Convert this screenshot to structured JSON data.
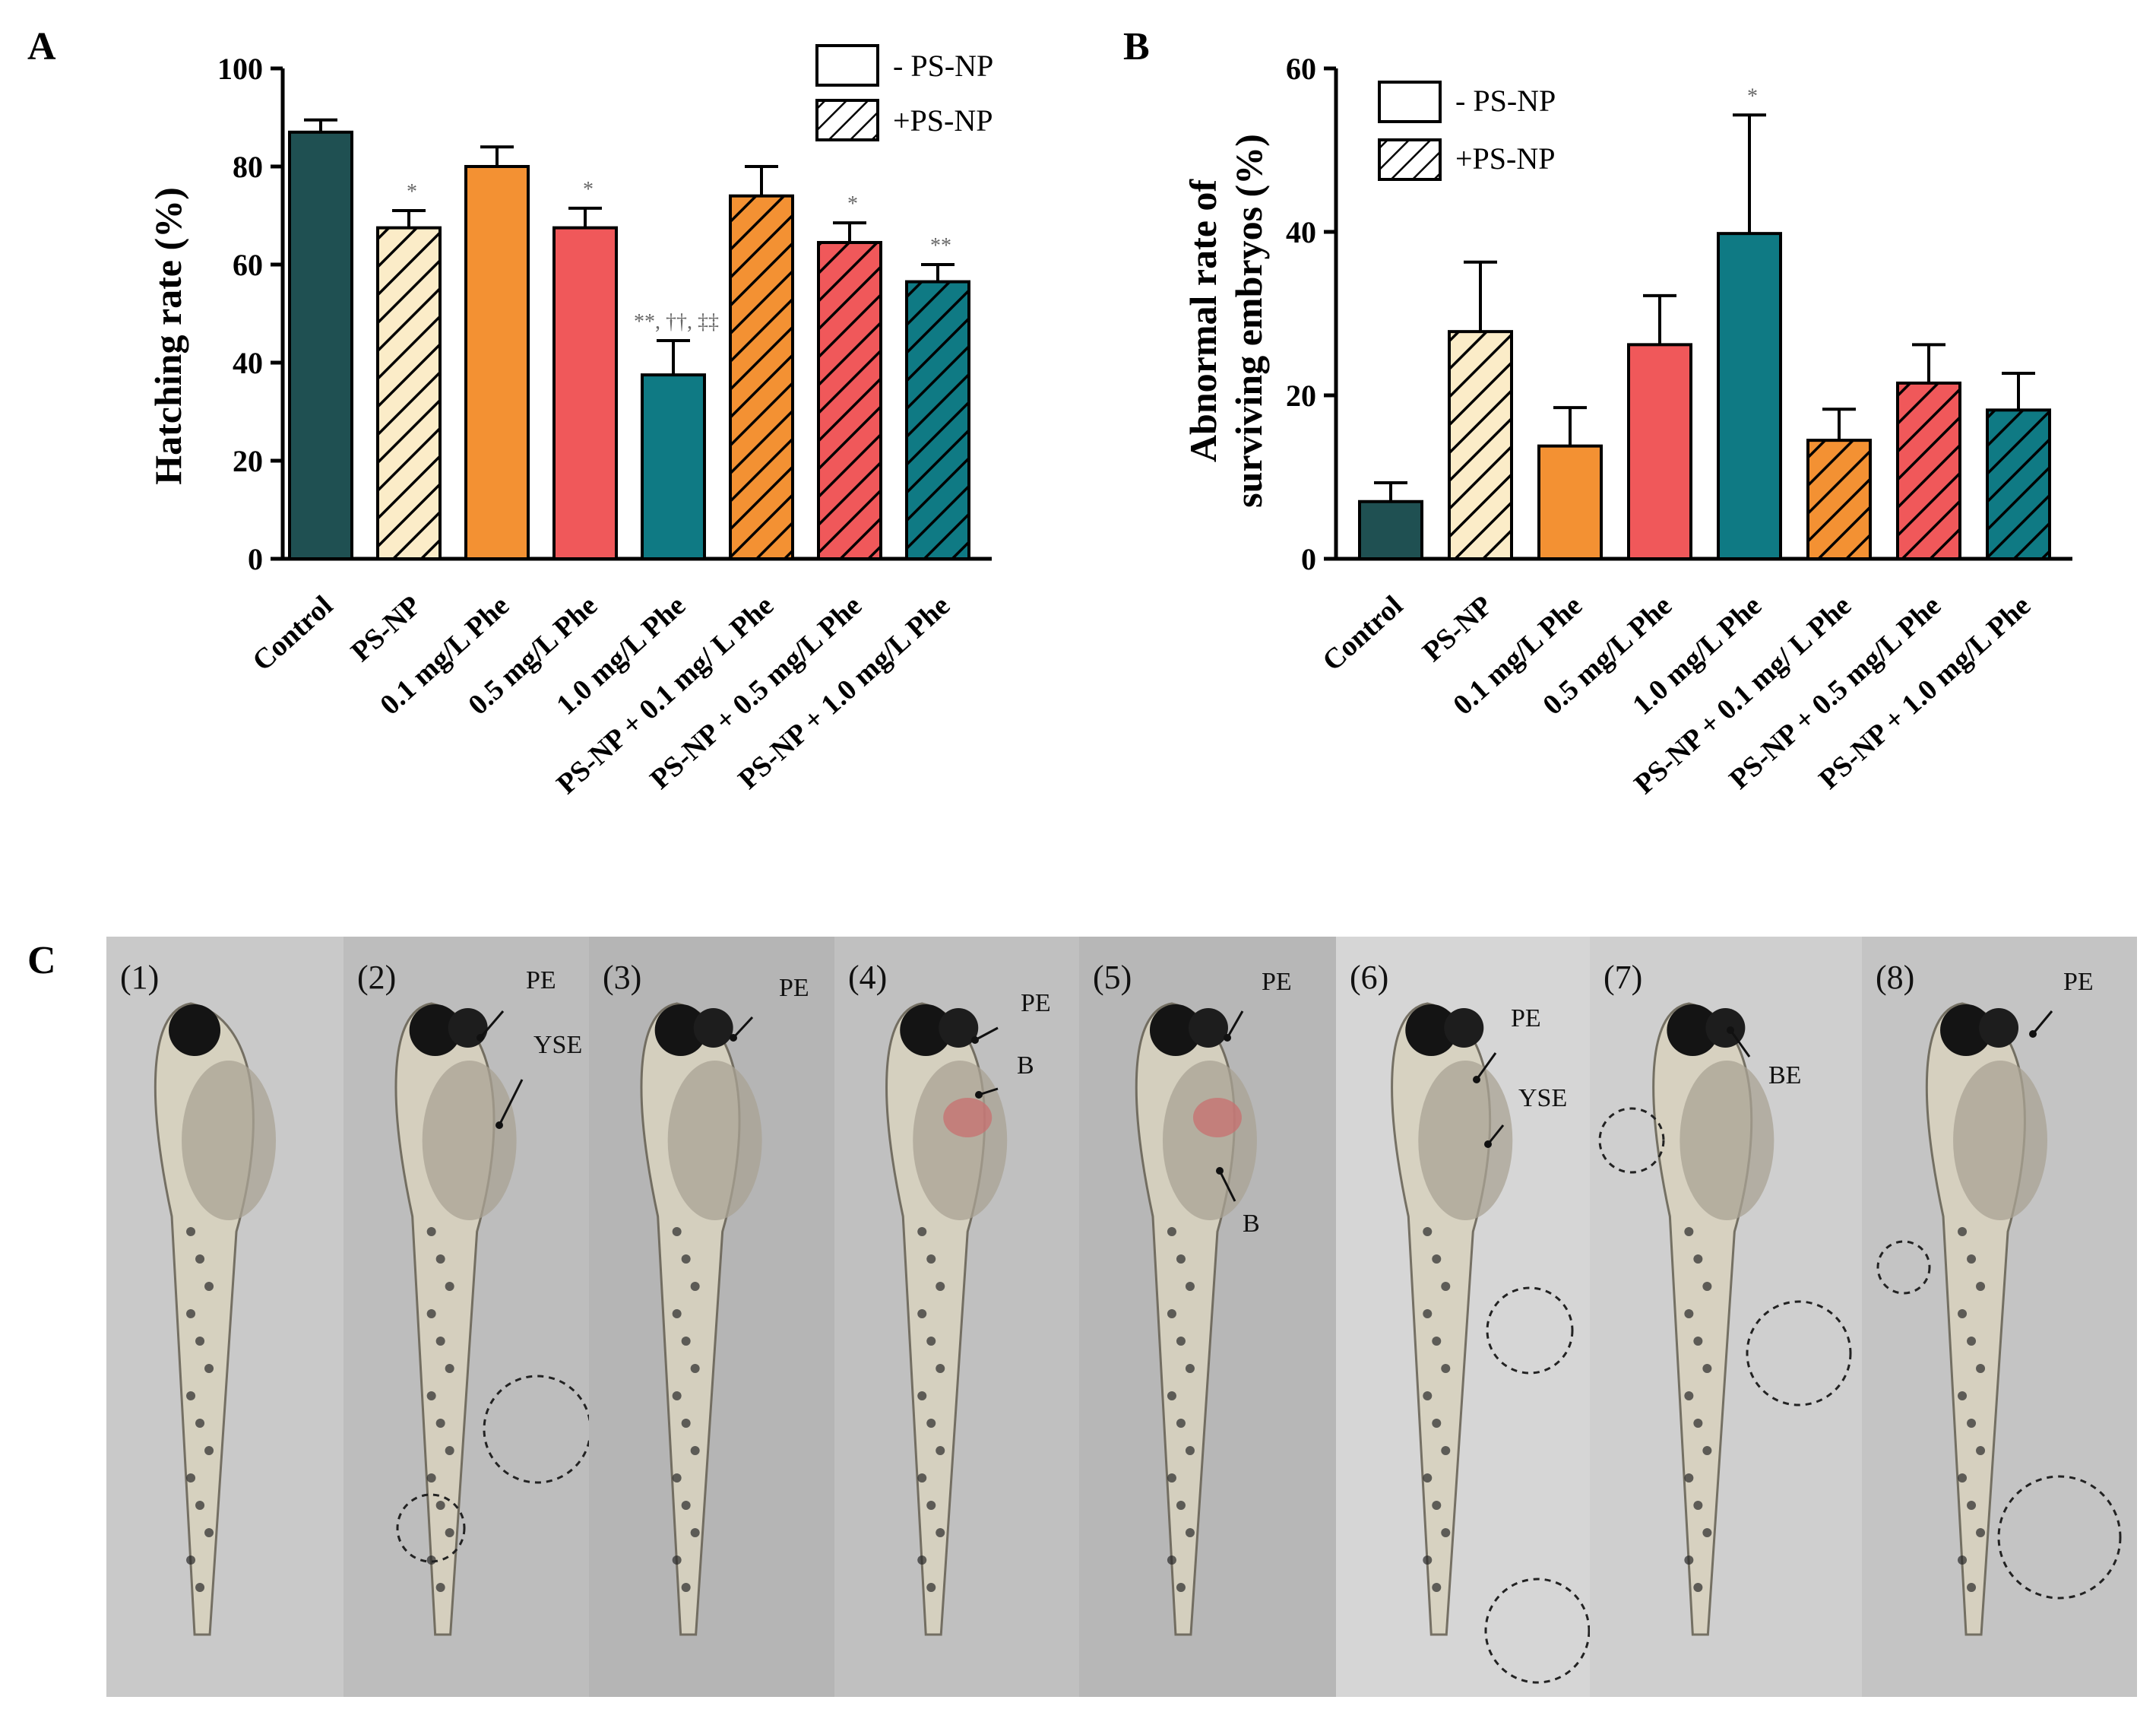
{
  "panel_labels": {
    "a": "A",
    "b": "B",
    "c": "C"
  },
  "legend": {
    "minus": "- PS-NP",
    "plus": "+PS-NP"
  },
  "colors": {
    "control": "#1f5052",
    "psnp": "#fbecc8",
    "phe01": "#f39133",
    "phe05": "#f0585a",
    "phe10": "#0f7a84"
  },
  "chart_data": [
    {
      "type": "bar",
      "panel": "A",
      "ylabel": "Hatching rate (%)",
      "xlabel": "",
      "ylim": [
        0,
        100
      ],
      "yticks": [
        "0",
        "20",
        "40",
        "60",
        "80",
        "100"
      ],
      "categories": [
        "Control",
        "PS-NP",
        "0.1 mg/L Phe",
        "0.5 mg/L Phe",
        "1.0 mg/L Phe",
        "PS-NP + 0.1 mg/ L Phe",
        "PS-NP + 0.5 mg/L  Phe",
        "PS-NP + 1.0 mg/L Phe"
      ],
      "values": [
        87,
        67.5,
        80,
        67.5,
        37.5,
        74,
        64.5,
        56.5
      ],
      "errors": [
        2.5,
        3.5,
        4,
        4,
        7,
        6,
        4,
        3.5
      ],
      "hatched": [
        false,
        true,
        false,
        false,
        false,
        true,
        true,
        true
      ],
      "fills": [
        "control",
        "psnp",
        "phe01",
        "phe05",
        "phe10",
        "phe01",
        "phe05",
        "phe10"
      ],
      "significance": [
        "",
        "*",
        "",
        "*",
        "**, ††, ‡‡",
        "",
        "*",
        "**"
      ]
    },
    {
      "type": "bar",
      "panel": "B",
      "ylabel_lines": [
        "Abnormal rate of",
        "surviving embryos (%)"
      ],
      "xlabel": "",
      "ylim": [
        0,
        60
      ],
      "yticks": [
        "0",
        "20",
        "40",
        "60"
      ],
      "categories": [
        "Control",
        "PS-NP",
        "0.1 mg/L Phe",
        "0.5 mg/L Phe",
        "1.0 mg/L Phe",
        "PS-NP + 0.1 mg/ L Phe",
        "PS-NP + 0.5 mg/L  Phe",
        "PS-NP + 1.0 mg/L Phe"
      ],
      "values": [
        7,
        27.8,
        13.8,
        26.2,
        39.8,
        14.5,
        21.5,
        18.2
      ],
      "errors": [
        2.3,
        8.5,
        4.7,
        6,
        14.5,
        3.8,
        4.7,
        4.5
      ],
      "hatched": [
        false,
        true,
        false,
        false,
        false,
        true,
        true,
        true
      ],
      "fills": [
        "control",
        "psnp",
        "phe01",
        "phe05",
        "phe10",
        "phe01",
        "phe05",
        "phe10"
      ],
      "significance": [
        "",
        "",
        "",
        "",
        "*",
        "",
        "",
        ""
      ]
    }
  ],
  "panel_c": {
    "images": [
      {
        "num": "(1)",
        "labels": []
      },
      {
        "num": "(2)",
        "labels": [
          "PE",
          "YSE"
        ]
      },
      {
        "num": "(3)",
        "labels": [
          "PE"
        ]
      },
      {
        "num": "(4)",
        "labels": [
          "PE",
          "B"
        ]
      },
      {
        "num": "(5)",
        "labels": [
          "PE",
          "B"
        ]
      },
      {
        "num": "(6)",
        "labels": [
          "PE",
          "YSE"
        ]
      },
      {
        "num": "(7)",
        "labels": [
          "BE"
        ]
      },
      {
        "num": "(8)",
        "labels": [
          "PE"
        ]
      }
    ]
  }
}
